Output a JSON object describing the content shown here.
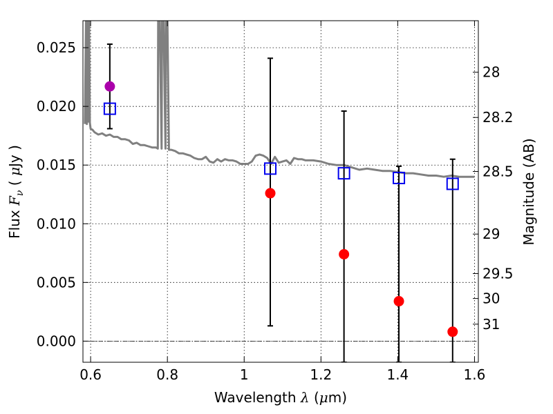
{
  "chart_data": {
    "type": "scatter",
    "xlabel": {
      "prefix": "Wavelength  ",
      "symbol": "λ",
      "suffix": " (",
      "unit_greek": "μ",
      "unit_rest": "m)"
    },
    "ylabel": {
      "prefix": "Flux  ",
      "symbol": "F",
      "subscript": "ν",
      "suffix_open": "  ( ",
      "unit_greek": "μ",
      "unit_rest": "Jy )"
    },
    "y2label": "Magnitude (AB)",
    "xlim": [
      0.58,
      1.61
    ],
    "ylim": [
      -0.0018,
      0.0273
    ],
    "x_ticks": [
      {
        "value": 0.6,
        "label": "0.6"
      },
      {
        "value": 0.8,
        "label": "0.8"
      },
      {
        "value": 1.0,
        "label": "1"
      },
      {
        "value": 1.2,
        "label": "1.2"
      },
      {
        "value": 1.4,
        "label": "1.4"
      },
      {
        "value": 1.6,
        "label": "1.6"
      }
    ],
    "y_ticks": [
      {
        "value": 0.0,
        "label": "0.000"
      },
      {
        "value": 0.005,
        "label": "0.005"
      },
      {
        "value": 0.01,
        "label": "0.010"
      },
      {
        "value": 0.015,
        "label": "0.015"
      },
      {
        "value": 0.02,
        "label": "0.020"
      },
      {
        "value": 0.025,
        "label": "0.025"
      }
    ],
    "y2_ticks": [
      {
        "mag": 28,
        "label": "28"
      },
      {
        "mag": 28.2,
        "label": "28.2"
      },
      {
        "mag": 28.5,
        "label": "28.5"
      },
      {
        "mag": 29,
        "label": "29"
      },
      {
        "mag": 29.5,
        "label": "29.5"
      },
      {
        "mag": 30,
        "label": "30"
      },
      {
        "mag": 31,
        "label": "31"
      }
    ],
    "grid": true,
    "zero_line": true,
    "colors": {
      "model_line": "#808080",
      "observed": "#ff0000",
      "magenta_point": "#aa00aa",
      "model_photometry": "#0000ee",
      "errorbar": "#000000"
    },
    "series": [
      {
        "kind": "line",
        "x": [
          0.585,
          0.588,
          0.59,
          0.592,
          0.594,
          0.596,
          0.598,
          0.6,
          0.605,
          0.61,
          0.62,
          0.63,
          0.64,
          0.65,
          0.66,
          0.67,
          0.68,
          0.69,
          0.7,
          0.71,
          0.72,
          0.73,
          0.74,
          0.75,
          0.76,
          0.77,
          0.775,
          0.776,
          0.78,
          0.785,
          0.786,
          0.79,
          0.795,
          0.796,
          0.8,
          0.804,
          0.805,
          0.81,
          0.82,
          0.83,
          0.84,
          0.85,
          0.86,
          0.87,
          0.88,
          0.89,
          0.9,
          0.91,
          0.92,
          0.93,
          0.94,
          0.95,
          0.96,
          0.97,
          0.98,
          0.99,
          1.0,
          1.01,
          1.02,
          1.03,
          1.04,
          1.05,
          1.06,
          1.07,
          1.08,
          1.09,
          1.1,
          1.11,
          1.12,
          1.13,
          1.14,
          1.15,
          1.16,
          1.18,
          1.2,
          1.22,
          1.24,
          1.26,
          1.28,
          1.3,
          1.32,
          1.34,
          1.36,
          1.38,
          1.4,
          1.42,
          1.44,
          1.46,
          1.48,
          1.5,
          1.52,
          1.54,
          1.56,
          1.58,
          1.6
        ],
        "y": [
          0.0185,
          0.0273,
          0.0185,
          0.0273,
          0.0187,
          0.0273,
          0.0186,
          0.0181,
          0.018,
          0.0178,
          0.0176,
          0.0177,
          0.0175,
          0.0176,
          0.0174,
          0.0174,
          0.0172,
          0.0172,
          0.0171,
          0.0168,
          0.0169,
          0.0167,
          0.0167,
          0.0166,
          0.0165,
          0.0165,
          0.0164,
          0.0273,
          0.0273,
          0.0164,
          0.0273,
          0.0273,
          0.0164,
          0.0273,
          0.0273,
          0.0163,
          0.0163,
          0.0163,
          0.0162,
          0.016,
          0.016,
          0.0159,
          0.0158,
          0.0156,
          0.0155,
          0.0155,
          0.0157,
          0.0153,
          0.0152,
          0.0155,
          0.0153,
          0.0155,
          0.0154,
          0.0154,
          0.0153,
          0.0151,
          0.0151,
          0.0151,
          0.0153,
          0.0158,
          0.0159,
          0.0158,
          0.0156,
          0.0151,
          0.0157,
          0.0152,
          0.0153,
          0.0154,
          0.0151,
          0.0156,
          0.0155,
          0.0155,
          0.0154,
          0.0154,
          0.0153,
          0.0151,
          0.015,
          0.015,
          0.0148,
          0.0146,
          0.0147,
          0.0146,
          0.0145,
          0.0145,
          0.0144,
          0.0143,
          0.0143,
          0.0142,
          0.0141,
          0.0141,
          0.014,
          0.0141,
          0.014,
          0.014,
          0.014
        ]
      },
      {
        "kind": "errorbar",
        "x": [
          0.65,
          1.068,
          1.26,
          1.403,
          1.543
        ],
        "low": [
          0.0181,
          0.0013,
          -0.0018,
          -0.0018,
          -0.0018
        ],
        "high": [
          0.0253,
          0.0241,
          0.0196,
          0.0149,
          0.0155
        ]
      },
      {
        "kind": "points_red",
        "x": [
          1.068,
          1.26,
          1.403,
          1.543
        ],
        "y": [
          0.0126,
          0.0074,
          0.0034,
          0.0008
        ]
      },
      {
        "kind": "points_magenta",
        "x": [
          0.65
        ],
        "y": [
          0.0217
        ]
      },
      {
        "kind": "squares_blue",
        "x": [
          0.65,
          1.068,
          1.26,
          1.403,
          1.543
        ],
        "y": [
          0.0198,
          0.0147,
          0.0143,
          0.0139,
          0.0134
        ]
      }
    ]
  }
}
